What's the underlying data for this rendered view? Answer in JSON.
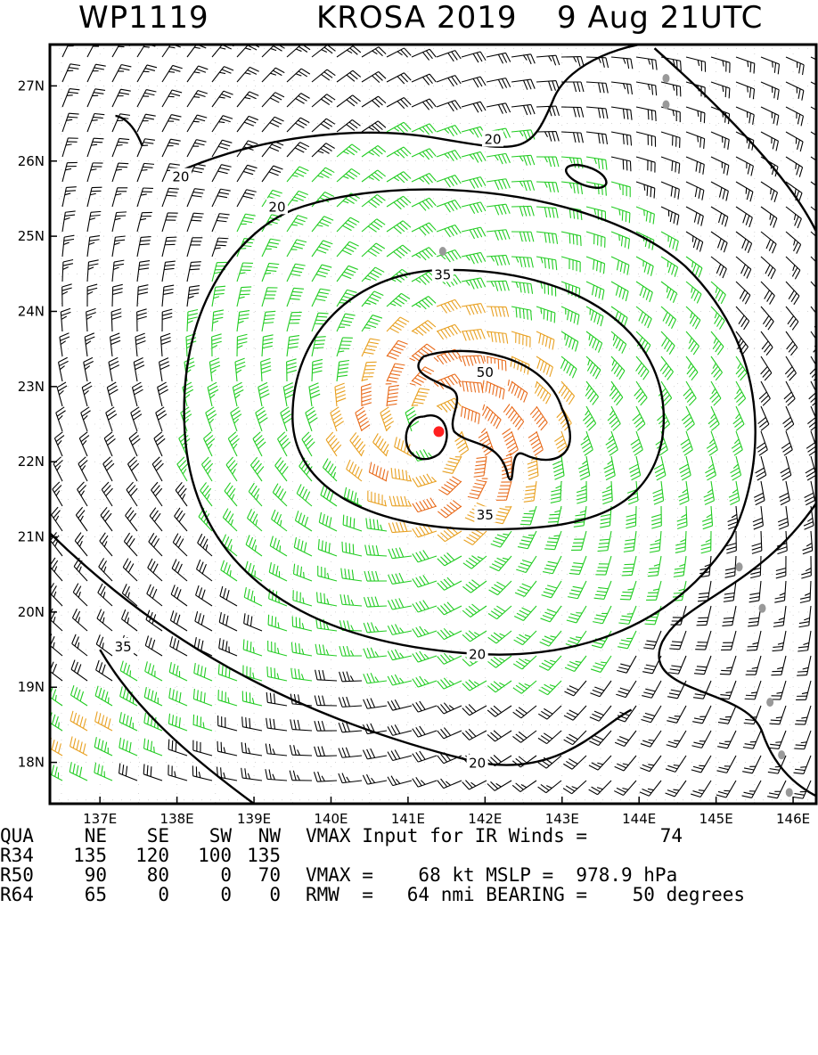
{
  "header": {
    "storm_id": "WP1119",
    "storm_name_year": "KROSA 2019",
    "datetime": "9 Aug 21UTC"
  },
  "map": {
    "lon_labels": [
      "137E",
      "138E",
      "139E",
      "140E",
      "141E",
      "142E",
      "143E",
      "144E",
      "145E",
      "146E"
    ],
    "lat_labels": [
      "27N",
      "26N",
      "25N",
      "24N",
      "23N",
      "22N",
      "21N",
      "20N",
      "19N",
      "18N"
    ],
    "lon_range": [
      136.35,
      146.3
    ],
    "lat_range": [
      17.45,
      27.55
    ],
    "center": {
      "lon": 141.4,
      "lat": 22.4
    },
    "contour_labels": [
      {
        "text": "20",
        "lon": 138.05,
        "lat": 25.8
      },
      {
        "text": "20",
        "lon": 142.1,
        "lat": 26.3
      },
      {
        "text": "20",
        "lon": 139.3,
        "lat": 25.4
      },
      {
        "text": "35",
        "lon": 141.45,
        "lat": 24.5
      },
      {
        "text": "50",
        "lon": 142.0,
        "lat": 23.2
      },
      {
        "text": "35",
        "lon": 142.0,
        "lat": 21.3
      },
      {
        "text": "20",
        "lon": 141.9,
        "lat": 19.45
      },
      {
        "text": "35",
        "lon": 137.3,
        "lat": 19.55
      },
      {
        "text": "20",
        "lon": 141.9,
        "lat": 18.0
      }
    ],
    "colors": {
      "calm": "#000000",
      "gale": "#22cc22",
      "storm": "#e8a020",
      "strong": "#e86a1a",
      "center": "#ff2020",
      "land": "#999999"
    }
  },
  "table": {
    "headers": [
      "QUA",
      "NE",
      "SE",
      "SW",
      "NW"
    ],
    "rows": [
      [
        "R34",
        "135",
        "120",
        "100",
        "135"
      ],
      [
        "R50",
        "90",
        "80",
        "0",
        "70"
      ],
      [
        "R64",
        "65",
        "0",
        "0",
        "0"
      ]
    ]
  },
  "vmax_input": {
    "label": "VMAX Input for IR Winds =",
    "value": "74"
  },
  "vmax_line": "VMAX =    68 kt MSLP =  978.9 hPa",
  "rmw_line": "RMW  =   64 nmi BEARING =    50 degrees"
}
